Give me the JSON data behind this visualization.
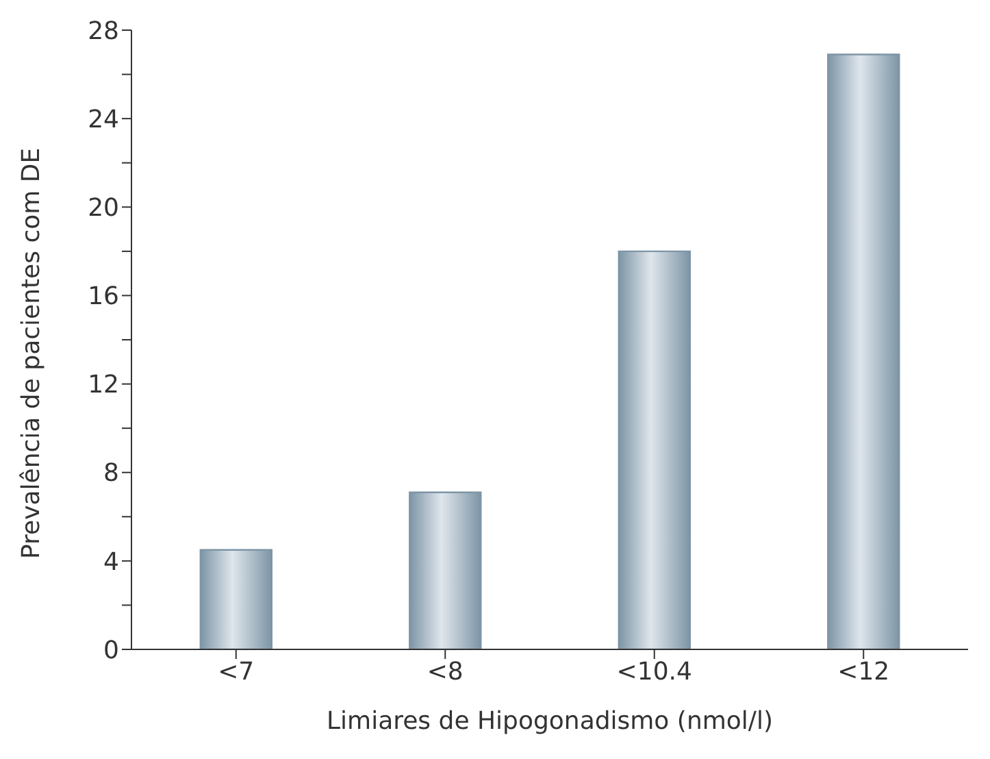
{
  "chart_data": {
    "type": "bar",
    "xlabel": "Limiares de Hipogonadismo (nmol/l)",
    "ylabel": "Prevalência de pacientes com DE",
    "categories": [
      "<7",
      "<8",
      "<10.4",
      "<12"
    ],
    "values": [
      4.5,
      7.1,
      18,
      26.9
    ],
    "color": "#7d95a6",
    "ylim": [
      0,
      28
    ],
    "yticks": [
      0,
      {
        "value": 2,
        "label": null
      },
      4,
      {
        "value": 6,
        "label": null
      },
      8,
      {
        "value": 10,
        "label": null
      },
      12,
      {
        "value": 14,
        "label": null
      },
      16,
      {
        "value": 18,
        "label": null
      },
      20,
      {
        "value": 22,
        "label": null
      },
      24,
      {
        "value": 26,
        "label": null
      },
      28
    ],
    "grid": false
  }
}
